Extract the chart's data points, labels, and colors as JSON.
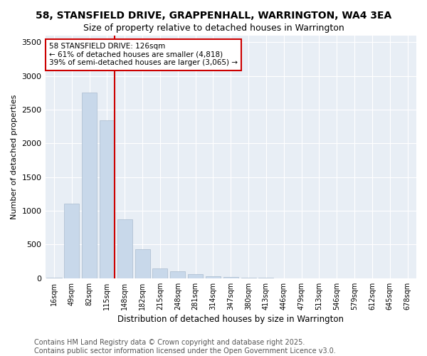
{
  "title": "58, STANSFIELD DRIVE, GRAPPENHALL, WARRINGTON, WA4 3EA",
  "subtitle": "Size of property relative to detached houses in Warrington",
  "xlabel": "Distribution of detached houses by size in Warrington",
  "ylabel": "Number of detached properties",
  "categories": [
    "16sqm",
    "49sqm",
    "82sqm",
    "115sqm",
    "148sqm",
    "182sqm",
    "215sqm",
    "248sqm",
    "281sqm",
    "314sqm",
    "347sqm",
    "380sqm",
    "413sqm",
    "446sqm",
    "479sqm",
    "513sqm",
    "546sqm",
    "579sqm",
    "612sqm",
    "645sqm",
    "678sqm"
  ],
  "values": [
    5,
    1110,
    2750,
    2340,
    870,
    430,
    150,
    100,
    60,
    35,
    15,
    8,
    5,
    3,
    2,
    1,
    1,
    1,
    0,
    0,
    0
  ],
  "bar_color": "#c8d8ea",
  "bar_edge_color": "#aabcce",
  "vline_color": "#cc0000",
  "annotation_text": "58 STANSFIELD DRIVE: 126sqm\n← 61% of detached houses are smaller (4,818)\n39% of semi-detached houses are larger (3,065) →",
  "annotation_box_color": "#ffffff",
  "annotation_box_edge": "#cc0000",
  "ylim": [
    0,
    3600
  ],
  "yticks": [
    0,
    500,
    1000,
    1500,
    2000,
    2500,
    3000,
    3500
  ],
  "background_color": "#ffffff",
  "plot_bg_color": "#e8eef5",
  "grid_color": "#ffffff",
  "footer1": "Contains HM Land Registry data © Crown copyright and database right 2025.",
  "footer2": "Contains public sector information licensed under the Open Government Licence v3.0.",
  "title_fontsize": 10,
  "subtitle_fontsize": 9,
  "footer_fontsize": 7
}
